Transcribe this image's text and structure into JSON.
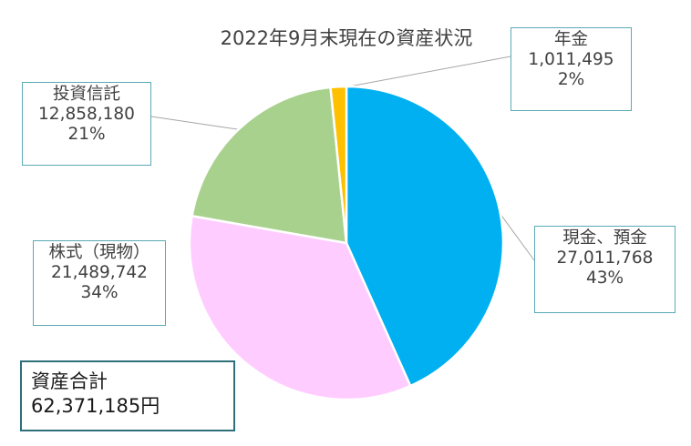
{
  "chart_data": {
    "type": "pie",
    "title": "2022年9月末現在の資産状況",
    "slices": [
      {
        "name": "現金、預金",
        "value": 27011768,
        "value_label": "27,011,768",
        "percent_label": "43%",
        "color": "#00b0f0"
      },
      {
        "name": "株式（現物）",
        "value": 21489742,
        "value_label": "21,489,742",
        "percent_label": "34%",
        "color": "#ffccff"
      },
      {
        "name": "投資信託",
        "value": 12858180,
        "value_label": "12,858,180",
        "percent_label": "21%",
        "color": "#a9d18e"
      },
      {
        "name": "年金",
        "value": 1011495,
        "value_label": "1,011,495",
        "percent_label": "2%",
        "color": "#ffc000"
      }
    ],
    "start": "12 o'clock",
    "direction": "clockwise",
    "legend": "none",
    "data_labels": "callout boxes with leader lines"
  },
  "total": {
    "label": "資産合計",
    "value_text": "62,371,185円"
  }
}
